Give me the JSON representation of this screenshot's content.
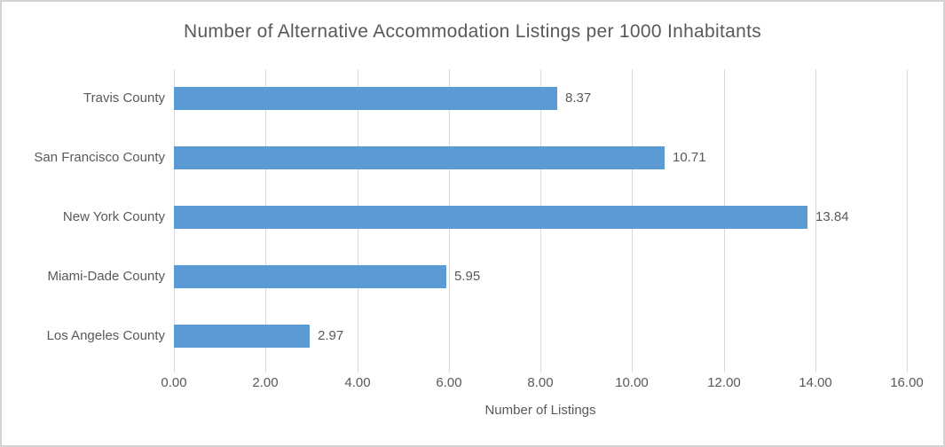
{
  "chart_data": {
    "type": "bar",
    "orientation": "horizontal",
    "title": "Number of Alternative Accommodation Listings per 1000 Inhabitants",
    "categories": [
      "Travis County",
      "San Francisco County",
      "New York County",
      "Miami-Dade County",
      "Los Angeles County"
    ],
    "values": [
      8.37,
      10.71,
      13.84,
      5.95,
      2.97
    ],
    "value_labels": [
      "8.37",
      "10.71",
      "13.84",
      "5.95",
      "2.97"
    ],
    "xlabel": "Number of Listings",
    "ylabel": "",
    "xlim": [
      0,
      16
    ],
    "xticks": [
      "0.00",
      "2.00",
      "4.00",
      "6.00",
      "8.00",
      "10.00",
      "12.00",
      "14.00",
      "16.00"
    ],
    "xtick_values": [
      0,
      2,
      4,
      6,
      8,
      10,
      12,
      14,
      16
    ],
    "grid": "vertical-major",
    "legend": "none",
    "data_labels": "outside-end",
    "colors": {
      "bar": "#5B9BD5",
      "gridline": "#D9D9D9",
      "text": "#595959",
      "background": "#FFFFFF",
      "border": "#D2D2D2"
    }
  }
}
